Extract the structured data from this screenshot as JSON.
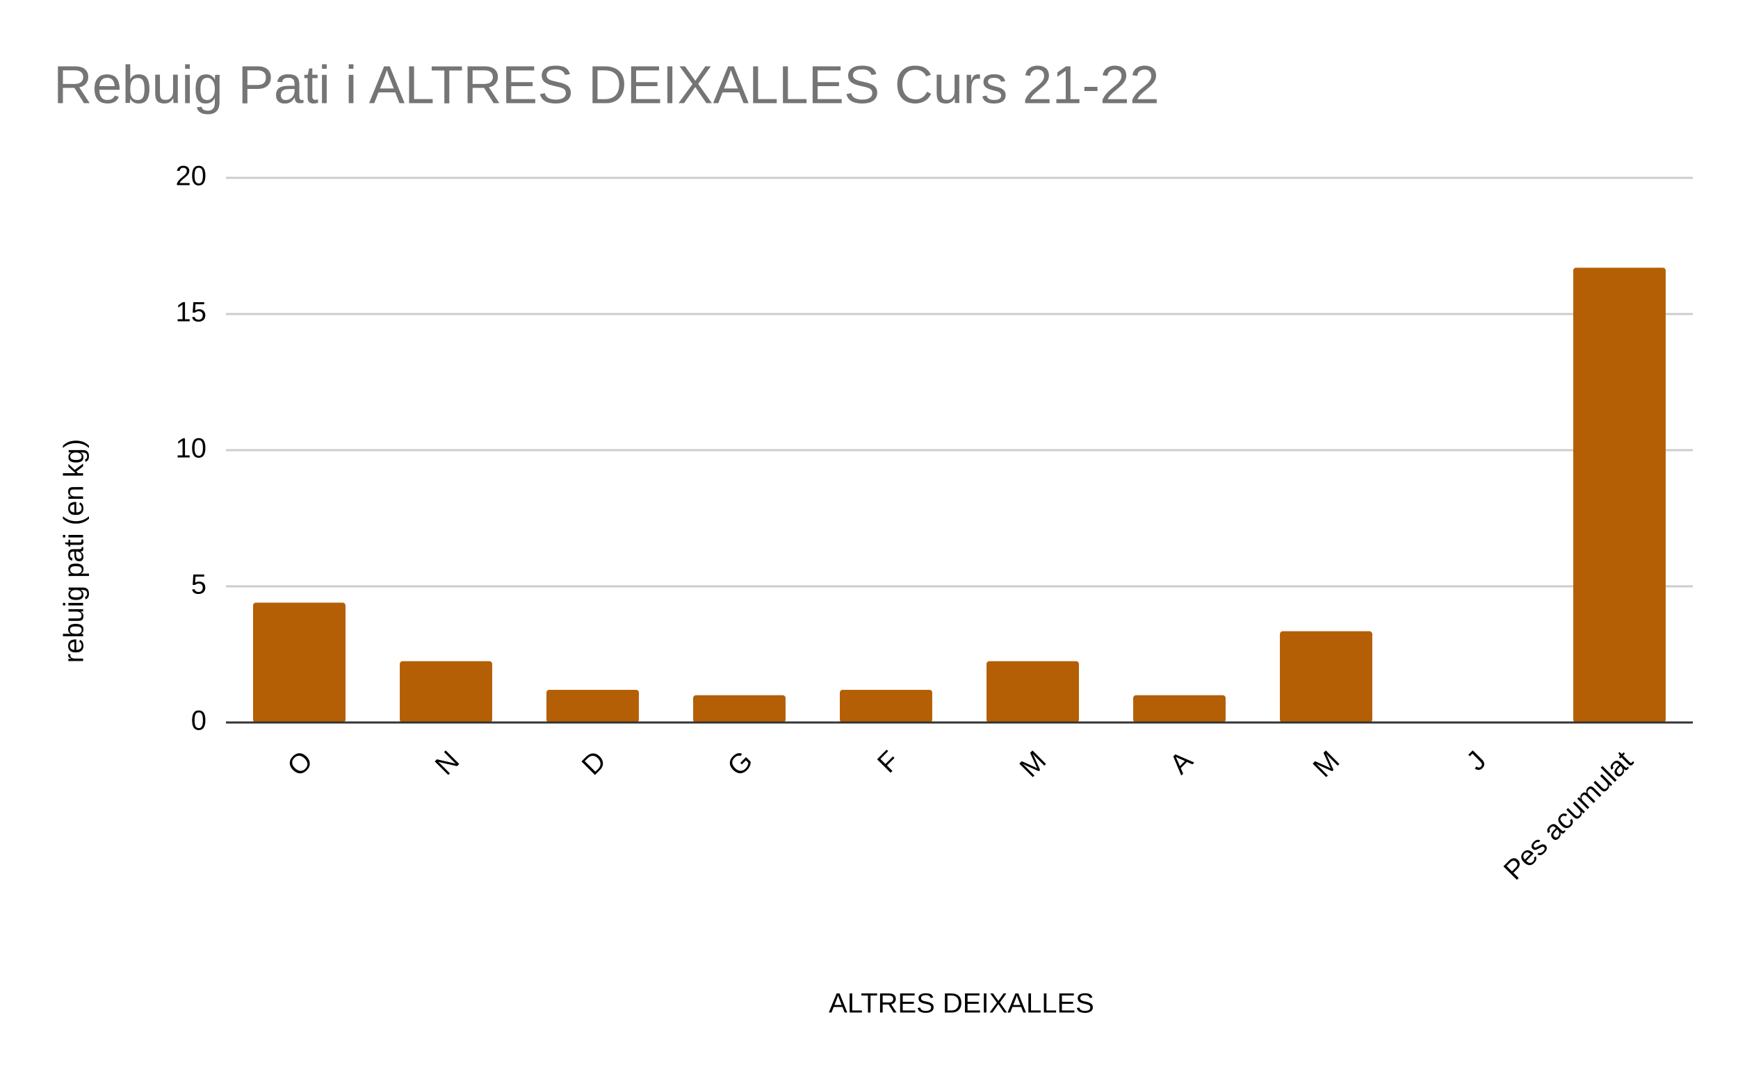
{
  "chart_data": {
    "type": "bar",
    "title": "Rebuig Pati i ALTRES DEIXALLES Curs 21-22",
    "x_label": "ALTRES DEIXALLES",
    "y_label": "rebuig pati (en kg)",
    "categories": [
      "O",
      "N",
      "D",
      "G",
      "F",
      "M",
      "A",
      "M",
      "J",
      "Pes acumulat"
    ],
    "values": [
      4.4,
      2.25,
      1.2,
      1,
      1.2,
      2.25,
      1,
      3.35,
      0,
      16.7
    ],
    "color": "#b45f06",
    "ylim": [
      0,
      20
    ],
    "yticks": [
      0,
      5,
      10,
      15,
      20
    ],
    "grid": true
  }
}
